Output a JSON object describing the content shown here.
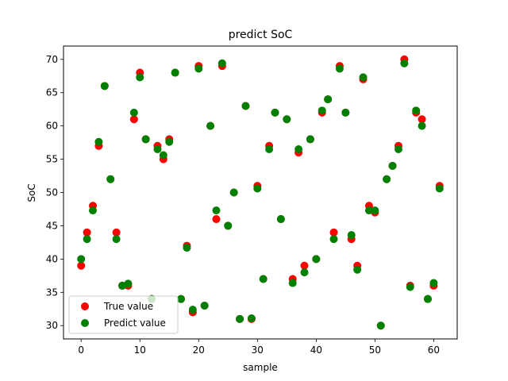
{
  "colors": {
    "true": "#ff0000",
    "predict": "#008000"
  },
  "chart_data": {
    "type": "scatter",
    "title": "predict SoC",
    "xlabel": "sample",
    "ylabel": "SoC",
    "xlim": [
      -3,
      64
    ],
    "ylim": [
      28,
      72
    ],
    "xticks": [
      0,
      10,
      20,
      30,
      40,
      50,
      60
    ],
    "yticks": [
      30,
      35,
      40,
      45,
      50,
      55,
      60,
      65,
      70
    ],
    "legend": {
      "location": "lower-left",
      "entries": [
        "True value",
        "Predict value"
      ]
    },
    "series": [
      {
        "name": "True value",
        "x": [
          0,
          1,
          2,
          3,
          4,
          5,
          6,
          7,
          8,
          9,
          10,
          11,
          12,
          13,
          14,
          15,
          16,
          17,
          18,
          19,
          20,
          21,
          22,
          23,
          24,
          25,
          26,
          27,
          28,
          29,
          30,
          31,
          32,
          33,
          34,
          35,
          36,
          37,
          38,
          39,
          40,
          41,
          42,
          43,
          44,
          45,
          46,
          47,
          48,
          49,
          50,
          51,
          52,
          53,
          54,
          55,
          56,
          57,
          58,
          59,
          60,
          61
        ],
        "y": [
          39,
          44,
          48,
          57,
          66,
          52,
          44,
          36,
          36,
          61,
          68,
          58,
          34,
          57,
          55,
          58,
          68,
          34,
          42,
          32,
          69,
          33,
          60,
          46,
          69,
          45,
          50,
          31,
          63,
          31,
          51,
          37,
          57,
          62,
          46,
          61,
          37,
          56,
          39,
          58,
          40,
          62,
          64,
          44,
          69,
          62,
          43,
          39,
          67,
          48,
          47,
          30,
          52,
          54,
          57,
          70,
          36,
          62,
          61,
          34,
          36,
          51
        ]
      },
      {
        "name": "Predict value",
        "x": [
          0,
          1,
          2,
          3,
          4,
          5,
          6,
          7,
          8,
          9,
          10,
          11,
          12,
          13,
          14,
          15,
          16,
          17,
          18,
          19,
          20,
          21,
          22,
          23,
          24,
          25,
          26,
          27,
          28,
          29,
          30,
          31,
          32,
          33,
          34,
          35,
          36,
          37,
          38,
          39,
          40,
          41,
          42,
          43,
          44,
          45,
          46,
          47,
          48,
          49,
          50,
          51,
          52,
          53,
          54,
          55,
          56,
          57,
          58,
          59,
          60,
          61
        ],
        "y": [
          40,
          43,
          47.3,
          57.6,
          66,
          52,
          43,
          36,
          36.3,
          62,
          67.3,
          58,
          34,
          56.5,
          55.6,
          57.6,
          68,
          34,
          41.7,
          32.4,
          68.6,
          33,
          60,
          47.3,
          69.4,
          45,
          50,
          31,
          63,
          31.1,
          50.6,
          37,
          56.5,
          62,
          46,
          61,
          36.4,
          56.5,
          38,
          58,
          40,
          62.3,
          64,
          43,
          68.6,
          62,
          43.6,
          38.4,
          67.3,
          47.3,
          47.3,
          30,
          52,
          54,
          56.5,
          69.4,
          35.8,
          62.3,
          60,
          34,
          36.4,
          50.6
        ]
      }
    ]
  }
}
